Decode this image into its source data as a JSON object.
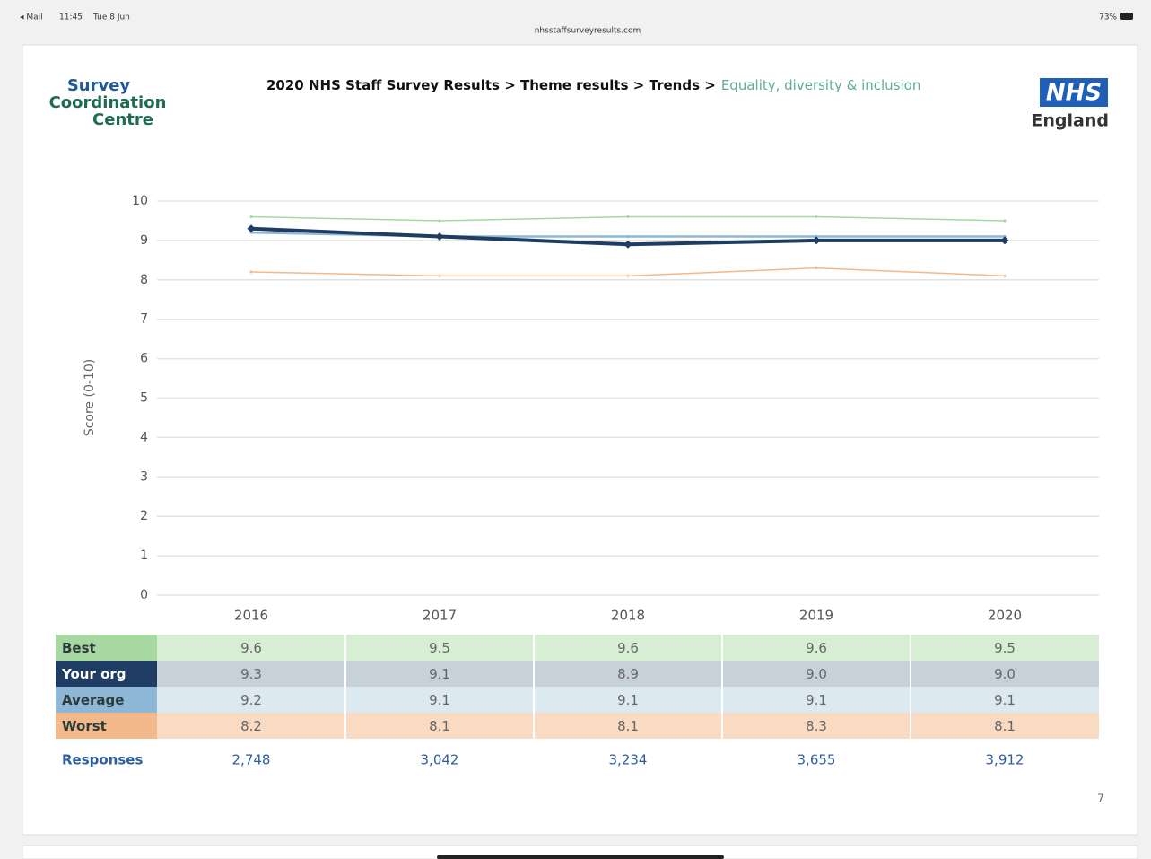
{
  "status_bar": {
    "app": "◂ Mail",
    "time": "11:45",
    "date": "Tue 8 Jun",
    "url": "nhsstaffsurveyresults.com",
    "battery": "73%"
  },
  "header": {
    "logo_left": [
      "Survey",
      "Coordination",
      "Centre"
    ],
    "breadcrumb": "2020 NHS Staff Survey Results > Theme results > Trends >",
    "breadcrumb_current": "Equality, diversity & inclusion",
    "logo_right": "NHS",
    "logo_right_sub": "England"
  },
  "chart_data": {
    "type": "line",
    "categories": [
      "2016",
      "2017",
      "2018",
      "2019",
      "2020"
    ],
    "y_label": "Score (0-10)",
    "ylim": [
      0,
      10
    ],
    "yticks": [
      0,
      1,
      2,
      3,
      4,
      5,
      6,
      7,
      8,
      9,
      10
    ],
    "grid": true,
    "series": [
      {
        "name": "Best",
        "color": "#a8d8a2",
        "row_color": "#d7edd4",
        "values": [
          9.6,
          9.5,
          9.6,
          9.6,
          9.5
        ]
      },
      {
        "name": "Your org",
        "color": "#1f3d63",
        "row_color": "#c8d0d8",
        "values": [
          9.3,
          9.1,
          8.9,
          9.0,
          9.0
        ],
        "value_labels": [
          "9.3",
          "9.1",
          "8.9",
          "9.0",
          "9.0"
        ]
      },
      {
        "name": "Average",
        "color": "#8db7d4",
        "row_color": "#dde9f0",
        "values": [
          9.2,
          9.1,
          9.1,
          9.1,
          9.1
        ]
      },
      {
        "name": "Worst",
        "color": "#f3b98b",
        "row_color": "#f9dac3",
        "values": [
          8.2,
          8.1,
          8.1,
          8.3,
          8.1
        ]
      }
    ],
    "responses": {
      "name": "Responses",
      "values": [
        2748,
        3042,
        3234,
        3655,
        3912
      ],
      "value_labels": [
        "2,748",
        "3,042",
        "3,234",
        "3,655",
        "3,912"
      ]
    }
  },
  "page_number": "7"
}
